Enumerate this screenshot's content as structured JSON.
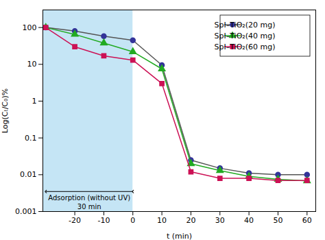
{
  "chart_data": {
    "type": "line",
    "x": [
      -30,
      -20,
      -10,
      0,
      10,
      20,
      30,
      40,
      50,
      60
    ],
    "series": [
      {
        "name": "SpI–TiO₂(20 mg)",
        "color": "#555555",
        "marker_color": "#333399",
        "marker": "circle",
        "values": [
          100,
          80,
          58,
          45,
          9.5,
          0.025,
          0.015,
          0.011,
          0.01,
          0.01
        ]
      },
      {
        "name": "SpI–TiO₂(40 mg)",
        "color": "#22aa22",
        "marker_color": "#22aa22",
        "marker": "triangle",
        "values": [
          100,
          65,
          38,
          22,
          7.5,
          0.02,
          0.013,
          0.009,
          0.0075,
          0.0068
        ]
      },
      {
        "name": "SpI–TiO₂(60 mg)",
        "color": "#cc1155",
        "marker_color": "#cc1155",
        "marker": "square",
        "values": [
          100,
          30,
          17,
          13,
          3.0,
          0.012,
          0.008,
          0.008,
          0.007,
          0.007
        ]
      }
    ],
    "xlabel": "t (min)",
    "ylabel": "Log(Cₜ/C₀)%",
    "xlim": [
      -31,
      63
    ],
    "ylim": [
      0.001,
      300
    ],
    "xticks": [
      -20,
      -10,
      0,
      10,
      20,
      30,
      40,
      50,
      60
    ],
    "yticks": [
      0.001,
      0.01,
      0.1,
      1,
      10,
      100
    ],
    "log": "y",
    "grid": false,
    "legend": "upper right",
    "regions": [
      {
        "x": [
          -31,
          0
        ],
        "color": "#c5e5f5"
      }
    ],
    "arrows": [
      {
        "x": [
          0,
          -30
        ],
        "y": 0.0035
      }
    ],
    "annotations": [
      {
        "text": "Adsorption (without UV)",
        "x": -15,
        "y": 0.0028
      },
      {
        "text": "30 min",
        "x": -15,
        "y": 0.0016
      }
    ]
  }
}
